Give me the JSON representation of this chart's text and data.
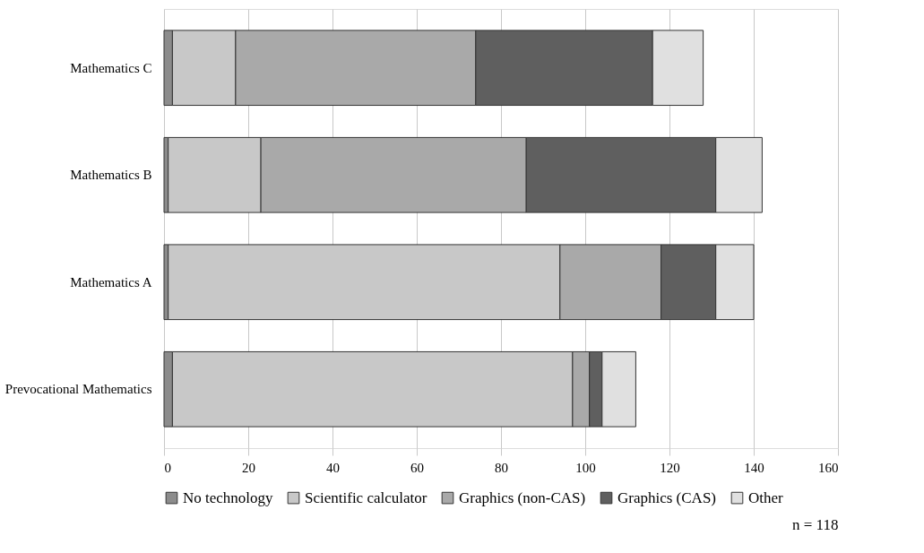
{
  "chart_data": {
    "type": "bar",
    "orientation": "horizontal",
    "stacked": true,
    "categories": [
      "Mathematics C",
      "Mathematics B",
      "Mathematics A",
      "Prevocational Mathematics"
    ],
    "series": [
      {
        "name": "No technology",
        "color": "#8c8c8c",
        "values": [
          2,
          1,
          1,
          2
        ]
      },
      {
        "name": "Scientific calculator",
        "color": "#c8c8c8",
        "values": [
          15,
          22,
          93,
          95
        ]
      },
      {
        "name": "Graphics (non-CAS)",
        "color": "#a9a9a9",
        "values": [
          57,
          63,
          24,
          4
        ]
      },
      {
        "name": "Graphics (CAS)",
        "color": "#5f5f5f",
        "values": [
          42,
          45,
          13,
          3
        ]
      },
      {
        "name": "Other",
        "color": "#e0e0e0",
        "values": [
          12,
          11,
          9,
          8
        ]
      }
    ],
    "xlim": [
      0,
      160
    ],
    "xticks": [
      0,
      20,
      40,
      60,
      80,
      100,
      120,
      140,
      160
    ],
    "grid": "x",
    "legend": "bottom",
    "annotations": [
      "n = 118"
    ]
  }
}
